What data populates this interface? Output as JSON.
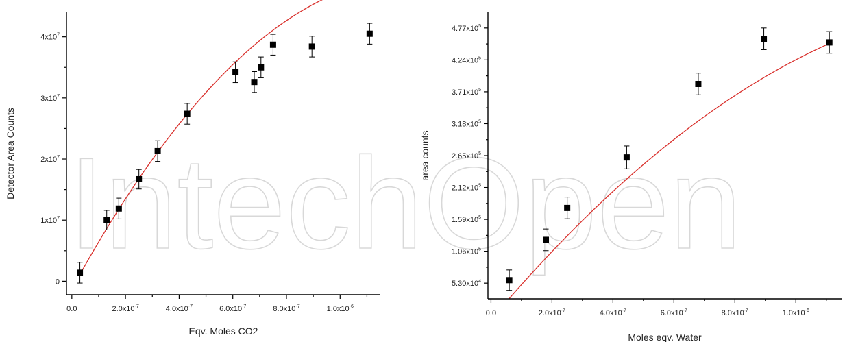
{
  "watermark": "IntechOpen",
  "colors": {
    "fit": "#d9302c",
    "marker": "#000000",
    "axis": "#000000"
  },
  "chart_data": [
    {
      "type": "scatter",
      "title": "",
      "xlabel": "Eqv. Moles CO2",
      "ylabel": "Detector Area Counts",
      "xlim": [
        -2e-08,
        1.15e-06
      ],
      "ylim": [
        -2200000.0,
        44000000.0
      ],
      "x_ticks": [
        {
          "value": 0.0,
          "base": "0.0",
          "exp": ""
        },
        {
          "value": 2e-07,
          "base": "2.0x10",
          "exp": "-7"
        },
        {
          "value": 4e-07,
          "base": "4.0x10",
          "exp": "-7"
        },
        {
          "value": 6e-07,
          "base": "6.0x10",
          "exp": "-7"
        },
        {
          "value": 8e-07,
          "base": "8.0x10",
          "exp": "-7"
        },
        {
          "value": 1e-06,
          "base": "1.0x10",
          "exp": "-6"
        }
      ],
      "y_ticks": [
        {
          "value": 0,
          "base": "0",
          "exp": ""
        },
        {
          "value": 10000000.0,
          "base": "1x10",
          "exp": "7"
        },
        {
          "value": 20000000.0,
          "base": "2x10",
          "exp": "7"
        },
        {
          "value": 30000000.0,
          "base": "3x10",
          "exp": "7"
        },
        {
          "value": 40000000.0,
          "base": "4x10",
          "exp": "7"
        }
      ],
      "points": [
        {
          "x": 3e-08,
          "y": 1400000.0,
          "err": 1700000.0
        },
        {
          "x": 1.3e-07,
          "y": 10000000.0,
          "err": 1600000.0
        },
        {
          "x": 1.75e-07,
          "y": 11900000.0,
          "err": 1700000.0
        },
        {
          "x": 2.5e-07,
          "y": 16700000.0,
          "err": 1600000.0
        },
        {
          "x": 3.2e-07,
          "y": 21300000.0,
          "err": 1700000.0
        },
        {
          "x": 4.3e-07,
          "y": 27400000.0,
          "err": 1700000.0
        },
        {
          "x": 6.1e-07,
          "y": 34200000.0,
          "err": 1700000.0
        },
        {
          "x": 6.8e-07,
          "y": 32600000.0,
          "err": 1700000.0
        },
        {
          "x": 7.05e-07,
          "y": 35000000.0,
          "err": 1700000.0
        },
        {
          "x": 7.5e-07,
          "y": 38700000.0,
          "err": 1700000.0
        },
        {
          "x": 8.95e-07,
          "y": 38400000.0,
          "err": 1700000.0
        },
        {
          "x": 1.11e-06,
          "y": 40500000.0,
          "err": 1700000.0
        }
      ],
      "fit": {
        "type": "quadratic",
        "x": [
          3e-08,
          1.11e-06
        ],
        "coef": [
          -1255000.0,
          80000000000000.0,
          -3.14e+19
        ]
      }
    },
    {
      "type": "scatter",
      "title": "",
      "xlabel": "Moles eqv. Water",
      "ylabel": "area counts",
      "xlim": [
        -1e-08,
        1.15e-06
      ],
      "ylim": [
        27000.0,
        503000.0
      ],
      "x_ticks": [
        {
          "value": 0.0,
          "base": "0.0",
          "exp": ""
        },
        {
          "value": 2e-07,
          "base": "2.0x10",
          "exp": "-7"
        },
        {
          "value": 4e-07,
          "base": "4.0x10",
          "exp": "-7"
        },
        {
          "value": 6e-07,
          "base": "6.0x10",
          "exp": "-7"
        },
        {
          "value": 8e-07,
          "base": "8.0x10",
          "exp": "-7"
        },
        {
          "value": 1e-06,
          "base": "1.0x10",
          "exp": "-6"
        }
      ],
      "y_ticks": [
        {
          "value": 53000.0,
          "base": "5.30x10",
          "exp": "4"
        },
        {
          "value": 106000.0,
          "base": "1.06x10",
          "exp": "5"
        },
        {
          "value": 159000.0,
          "base": "1.59x10",
          "exp": "5"
        },
        {
          "value": 212000.0,
          "base": "2.12x10",
          "exp": "5"
        },
        {
          "value": 265000.0,
          "base": "2.65x10",
          "exp": "5"
        },
        {
          "value": 318000.0,
          "base": "3.18x10",
          "exp": "5"
        },
        {
          "value": 371000.0,
          "base": "3.71x10",
          "exp": "5"
        },
        {
          "value": 424000.0,
          "base": "4.24x10",
          "exp": "5"
        },
        {
          "value": 477000.0,
          "base": "4.77x10",
          "exp": "5"
        }
      ],
      "points": [
        {
          "x": 6e-08,
          "y": 58000.0,
          "err": 17000.0
        },
        {
          "x": 1.8e-07,
          "y": 125000.0,
          "err": 18000.0
        },
        {
          "x": 2.5e-07,
          "y": 178000.0,
          "err": 18000.0
        },
        {
          "x": 4.45e-07,
          "y": 262000.0,
          "err": 19000.0
        },
        {
          "x": 6.8e-07,
          "y": 384000.0,
          "err": 18000.0
        },
        {
          "x": 8.95e-07,
          "y": 459000.0,
          "err": 18000.0
        },
        {
          "x": 1.11e-06,
          "y": 453000.0,
          "err": 18000.0
        }
      ],
      "fit": {
        "type": "quadratic",
        "x": [
          6e-08,
          1.11e-06
        ],
        "coef": [
          -7800.0,
          600000000000.0,
          -1.68e+17
        ]
      }
    }
  ]
}
